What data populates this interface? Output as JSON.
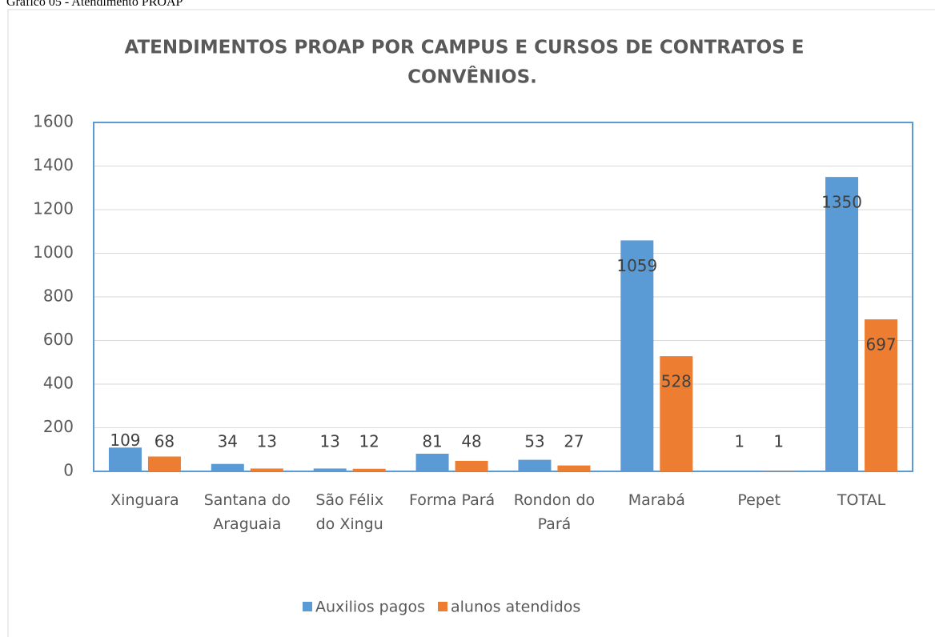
{
  "caption": "Gráfico 05 - Atendimento PROAP",
  "chart_data": {
    "type": "bar",
    "title": [
      "ATENDIMENTOS PROAP POR CAMPUS E CURSOS DE CONTRATOS E",
      "CONVÊNIOS."
    ],
    "categories": [
      "Xinguara",
      "Santana do Araguaia",
      "São Félix do Xingu",
      "Forma Pará",
      "Rondon do Pará",
      "Marabá",
      "Pepet",
      "TOTAL"
    ],
    "series": [
      {
        "name": "Auxilios pagos",
        "color": "#5b9bd5",
        "values": [
          109,
          34,
          13,
          81,
          53,
          1059,
          1,
          1350
        ]
      },
      {
        "name": "alunos atendidos",
        "color": "#ed7d31",
        "values": [
          68,
          13,
          12,
          48,
          27,
          528,
          1,
          697
        ]
      }
    ],
    "ylim": [
      0,
      1600
    ],
    "yticks": [
      0,
      200,
      400,
      600,
      800,
      1000,
      1200,
      1400,
      1600
    ],
    "grid": true,
    "legend": "bottom"
  }
}
